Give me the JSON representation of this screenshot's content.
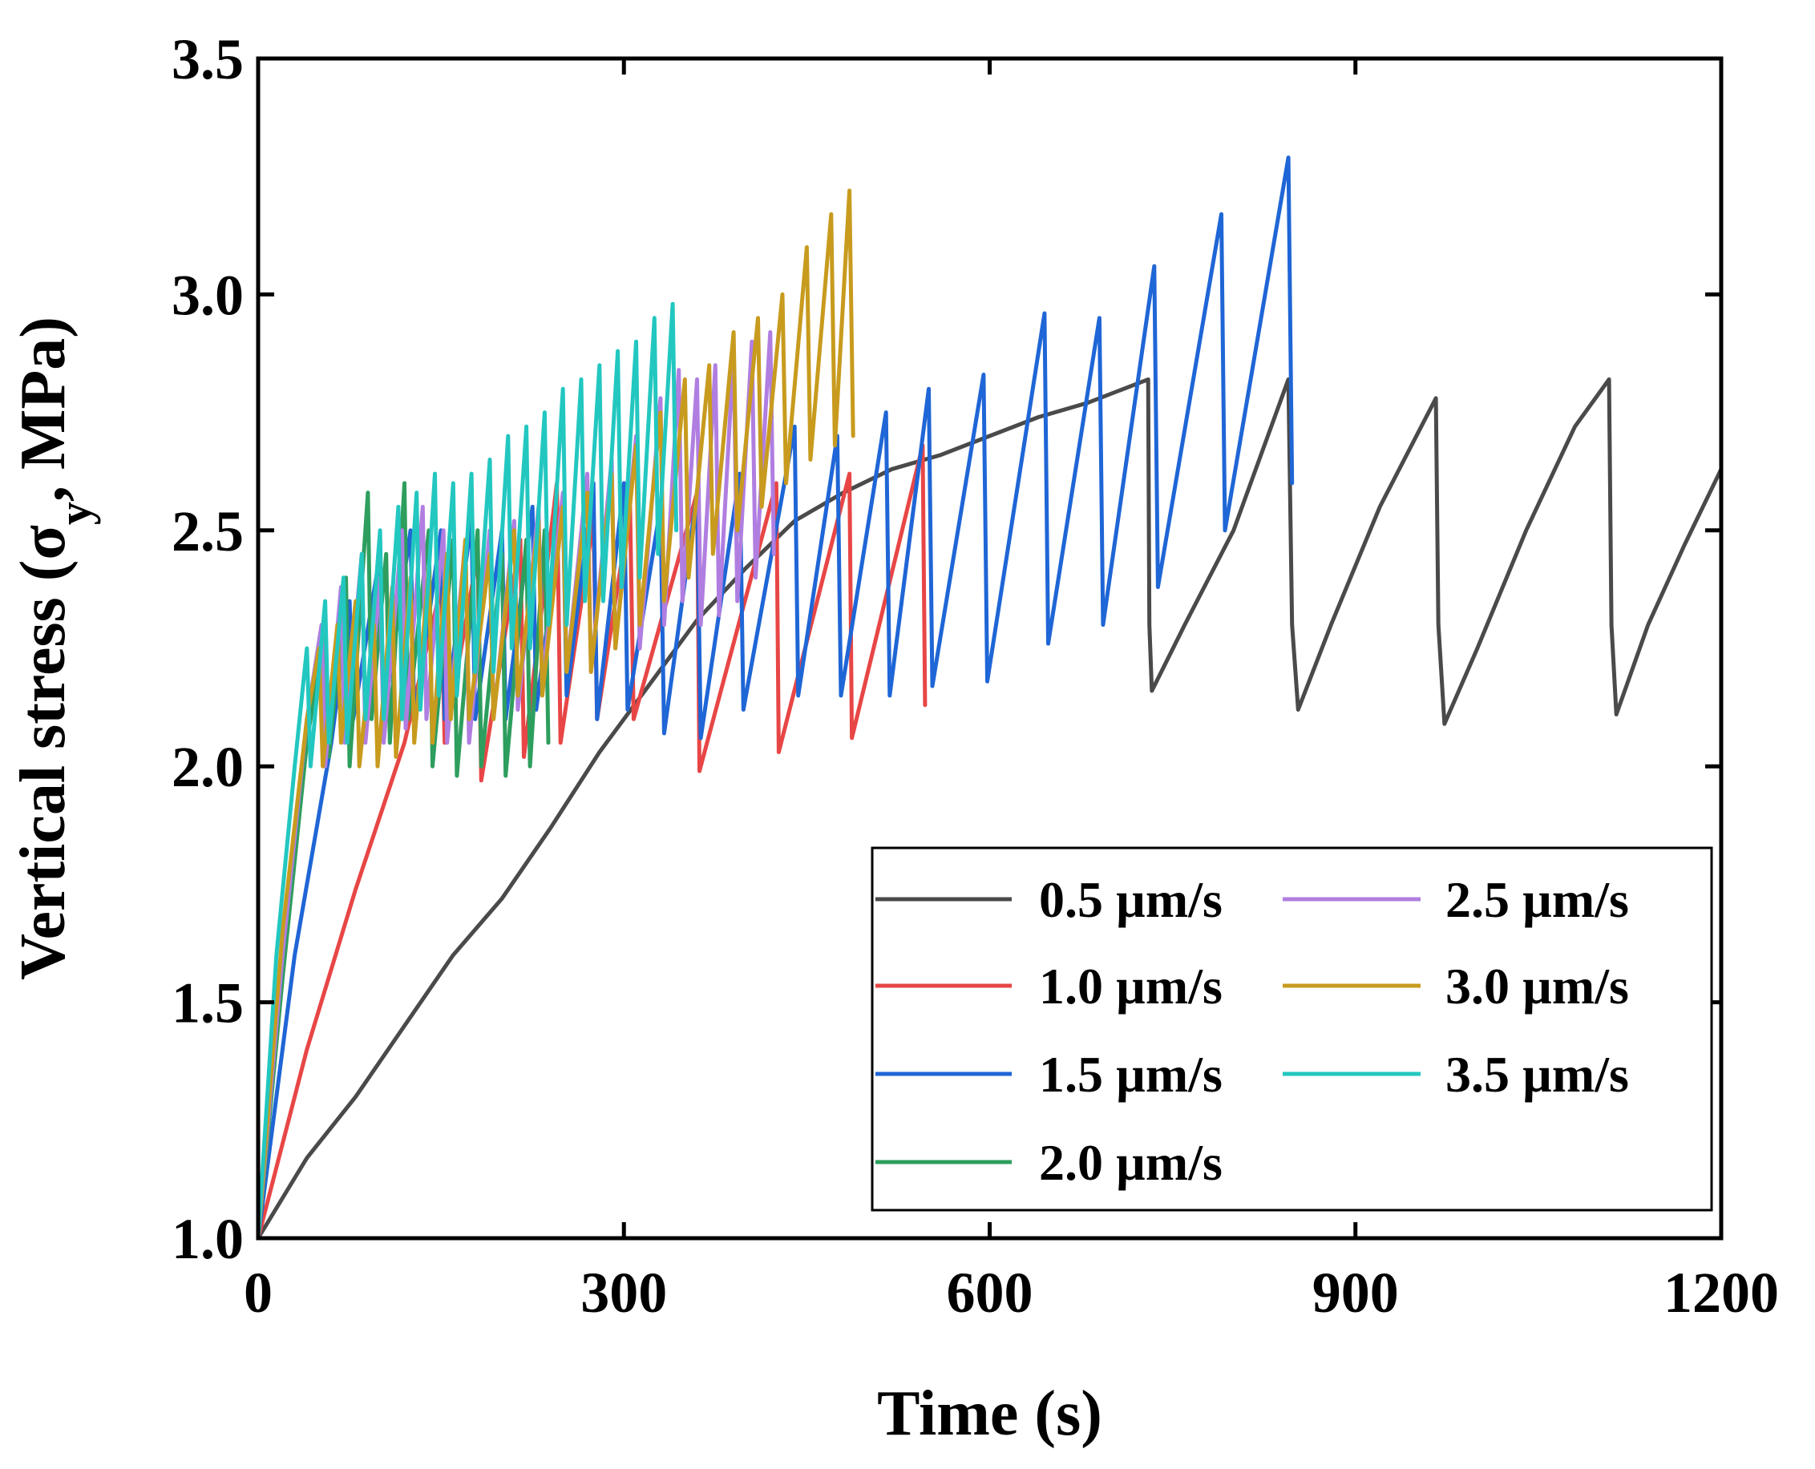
{
  "chart_data": {
    "type": "line",
    "title": "",
    "xlabel": "Time (s)",
    "ylabel_prefix": "Vertical stress ",
    "ylabel_paren": "(σ",
    "ylabel_sub": "y",
    "ylabel_suffix": ", MPa)",
    "xlim": [
      0,
      1200
    ],
    "ylim": [
      1.0,
      3.5
    ],
    "xticks": [
      0,
      300,
      600,
      900,
      1200
    ],
    "yticks": [
      1.0,
      1.5,
      2.0,
      2.5,
      3.0,
      3.5
    ],
    "xtick_labels": [
      "0",
      "300",
      "600",
      "900",
      "1200"
    ],
    "ytick_labels": [
      "1.0",
      "1.5",
      "2.0",
      "2.5",
      "3.0",
      "3.5"
    ],
    "grid": false,
    "legend_position": "bottom-right",
    "series": [
      {
        "name": "0.5 µm/s",
        "color": "#4a4a4a",
        "x": [
          0,
          40,
          80,
          120,
          160,
          200,
          240,
          280,
          320,
          360,
          400,
          440,
          480,
          520,
          560,
          600,
          640,
          680,
          730,
          731,
          733,
          760,
          800,
          845,
          848,
          853,
          880,
          920,
          966,
          968,
          973,
          1000,
          1040,
          1080,
          1108,
          1110,
          1114,
          1140,
          1170,
          1200
        ],
        "values": [
          1.0,
          1.17,
          1.3,
          1.45,
          1.6,
          1.72,
          1.87,
          2.03,
          2.17,
          2.31,
          2.42,
          2.52,
          2.58,
          2.63,
          2.66,
          2.7,
          2.74,
          2.77,
          2.82,
          2.3,
          2.16,
          2.3,
          2.5,
          2.82,
          2.3,
          2.12,
          2.3,
          2.55,
          2.78,
          2.3,
          2.09,
          2.25,
          2.5,
          2.72,
          2.82,
          2.3,
          2.11,
          2.3,
          2.47,
          2.63
        ]
      },
      {
        "name": "1.0 µm/s",
        "color": "#e84646",
        "x": [
          0,
          40,
          80,
          120,
          150,
          153,
          180,
          183,
          215,
          218,
          245,
          248,
          275,
          278,
          305,
          308,
          360,
          362,
          425,
          427,
          485,
          487,
          545,
          547
        ],
        "values": [
          1.0,
          1.4,
          1.74,
          2.05,
          2.38,
          2.05,
          2.45,
          1.97,
          2.48,
          2.02,
          2.6,
          2.05,
          2.52,
          2.1,
          2.55,
          2.1,
          2.58,
          1.99,
          2.6,
          2.03,
          2.62,
          2.06,
          2.68,
          2.13
        ]
      },
      {
        "name": "1.5 µm/s",
        "color": "#1f66d6",
        "x": [
          0,
          30,
          60,
          75,
          78,
          100,
          103,
          125,
          128,
          150,
          153,
          175,
          178,
          200,
          203,
          225,
          228,
          250,
          253,
          275,
          278,
          300,
          303,
          330,
          333,
          360,
          363,
          395,
          398,
          440,
          443,
          475,
          478,
          515,
          518,
          550,
          553,
          595,
          598,
          645,
          648,
          690,
          693,
          735,
          738,
          790,
          793,
          845,
          848
        ],
        "values": [
          1.0,
          1.6,
          2.05,
          2.35,
          2.1,
          2.45,
          2.1,
          2.5,
          2.1,
          2.5,
          2.1,
          2.52,
          2.1,
          2.5,
          2.1,
          2.55,
          2.12,
          2.55,
          2.15,
          2.6,
          2.1,
          2.6,
          2.12,
          2.55,
          2.07,
          2.58,
          2.06,
          2.62,
          2.12,
          2.72,
          2.15,
          2.7,
          2.15,
          2.75,
          2.15,
          2.8,
          2.17,
          2.83,
          2.18,
          2.96,
          2.26,
          2.95,
          2.3,
          3.06,
          2.38,
          3.17,
          2.5,
          3.29,
          2.6
        ]
      },
      {
        "name": "2.0 µm/s",
        "color": "#2e9e5e",
        "x": [
          0,
          20,
          40,
          55,
          58,
          72,
          75,
          90,
          93,
          105,
          108,
          120,
          123,
          140,
          143,
          160,
          163,
          180,
          183,
          200,
          203,
          220,
          223,
          235,
          238
        ],
        "values": [
          1.0,
          1.55,
          2.05,
          2.3,
          2.02,
          2.4,
          2.0,
          2.58,
          2.1,
          2.45,
          2.05,
          2.6,
          2.1,
          2.5,
          2.0,
          2.48,
          1.98,
          2.5,
          2.0,
          2.45,
          1.98,
          2.48,
          2.0,
          2.5,
          2.05
        ]
      },
      {
        "name": "2.5 µm/s",
        "color": "#b07ee0",
        "x": [
          0,
          20,
          40,
          52,
          55,
          68,
          71,
          85,
          88,
          100,
          103,
          118,
          121,
          135,
          138,
          152,
          155,
          170,
          173,
          190,
          193,
          210,
          213,
          230,
          233,
          250,
          253,
          270,
          273,
          290,
          293,
          310,
          313,
          330,
          333,
          345,
          348,
          360,
          363,
          375,
          378,
          390,
          393,
          405,
          408,
          420,
          423
        ],
        "values": [
          1.0,
          1.6,
          2.1,
          2.3,
          2.0,
          2.38,
          2.05,
          2.45,
          2.05,
          2.4,
          2.05,
          2.5,
          2.08,
          2.55,
          2.1,
          2.5,
          2.05,
          2.48,
          2.05,
          2.5,
          2.1,
          2.52,
          2.12,
          2.55,
          2.18,
          2.58,
          2.2,
          2.62,
          2.2,
          2.65,
          2.25,
          2.7,
          2.25,
          2.78,
          2.3,
          2.84,
          2.35,
          2.82,
          2.3,
          2.85,
          2.32,
          2.88,
          2.35,
          2.9,
          2.4,
          2.92,
          2.45
        ]
      },
      {
        "name": "3.0 µm/s",
        "color": "#c89b1e",
        "x": [
          0,
          20,
          40,
          50,
          53,
          65,
          68,
          80,
          83,
          95,
          98,
          110,
          113,
          125,
          128,
          140,
          143,
          155,
          158,
          170,
          173,
          190,
          193,
          210,
          213,
          230,
          233,
          250,
          253,
          270,
          273,
          290,
          293,
          310,
          313,
          330,
          333,
          350,
          353,
          370,
          373,
          390,
          393,
          410,
          413,
          430,
          433,
          450,
          453,
          470,
          473,
          485,
          488
        ],
        "values": [
          1.0,
          1.65,
          2.1,
          2.25,
          2.0,
          2.3,
          2.05,
          2.35,
          2.0,
          2.3,
          2.0,
          2.38,
          2.02,
          2.4,
          2.05,
          2.42,
          2.05,
          2.45,
          2.1,
          2.48,
          2.1,
          2.45,
          2.1,
          2.5,
          2.15,
          2.52,
          2.15,
          2.55,
          2.2,
          2.58,
          2.2,
          2.62,
          2.25,
          2.68,
          2.3,
          2.75,
          2.35,
          2.82,
          2.4,
          2.85,
          2.45,
          2.92,
          2.5,
          2.95,
          2.55,
          3.0,
          2.6,
          3.1,
          2.65,
          3.17,
          2.68,
          3.22,
          2.7
        ]
      },
      {
        "name": "3.5 µm/s",
        "color": "#22c7c0",
        "x": [
          0,
          15,
          30,
          40,
          43,
          55,
          58,
          70,
          73,
          85,
          88,
          100,
          103,
          115,
          118,
          130,
          133,
          145,
          148,
          160,
          163,
          175,
          178,
          190,
          193,
          205,
          208,
          220,
          223,
          235,
          238,
          250,
          253,
          265,
          268,
          280,
          283,
          295,
          298,
          310,
          313,
          325,
          328,
          340,
          343
        ],
        "values": [
          1.0,
          1.6,
          2.0,
          2.25,
          2.0,
          2.35,
          2.05,
          2.4,
          2.05,
          2.45,
          2.1,
          2.5,
          2.1,
          2.55,
          2.1,
          2.58,
          2.12,
          2.62,
          2.15,
          2.6,
          2.15,
          2.62,
          2.2,
          2.65,
          2.2,
          2.7,
          2.25,
          2.72,
          2.25,
          2.75,
          2.3,
          2.8,
          2.3,
          2.82,
          2.35,
          2.85,
          2.35,
          2.88,
          2.38,
          2.9,
          2.4,
          2.95,
          2.45,
          2.98,
          2.5
        ]
      }
    ]
  }
}
